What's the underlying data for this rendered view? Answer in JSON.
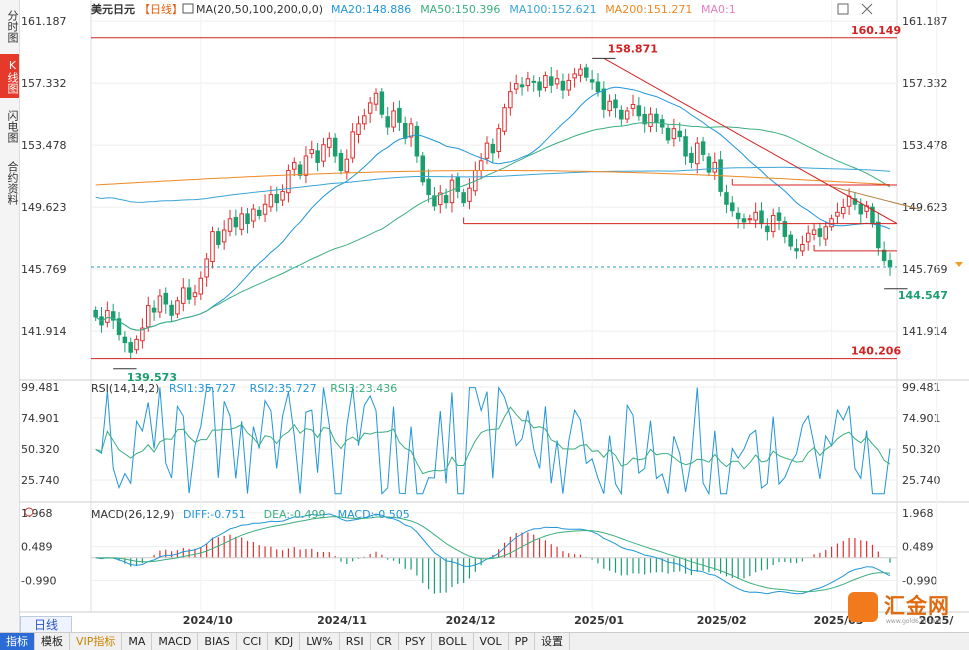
{
  "sidebar": {
    "tabs": [
      {
        "label": "分时图",
        "active": false
      },
      {
        "label": "K线图",
        "active": true
      },
      {
        "label": "闪电图",
        "active": false
      },
      {
        "label": "合约资料",
        "active": false
      }
    ]
  },
  "period_tab": "日线",
  "bottom_tabs": [
    "指标",
    "模板",
    "VIP指标",
    "MA",
    "MACD",
    "BIAS",
    "CCI",
    "KDJ",
    "LW%",
    "RSI",
    "CR",
    "PSY",
    "BOLL",
    "VOL",
    "PP",
    "设置"
  ],
  "logo": {
    "text": "汇金网",
    "url": "www.gold678.com"
  },
  "colors": {
    "up": "#e03030",
    "down": "#1a9e6e",
    "ma20": "#2196d8",
    "ma50": "#3aae7e",
    "ma100": "#3ba4d4",
    "ma200": "#ee8822",
    "rsi1": "#2196d8",
    "rsi3": "#3aae7e",
    "diff": "#2196d8",
    "dea": "#3aae7e",
    "trend": "#d42020"
  },
  "chart_data": {
    "type": "candlestick",
    "main": {
      "symbol": "美元日元",
      "period": "日线",
      "ma_header": "MA(20,50,100,200,0,0)",
      "ma_values": [
        {
          "name": "MA20",
          "value": "148.886"
        },
        {
          "name": "MA50",
          "value": "150.396"
        },
        {
          "name": "MA100",
          "value": "152.621"
        },
        {
          "name": "MA200",
          "value": "151.271"
        },
        {
          "name": "MA0",
          "value": "1"
        }
      ],
      "ylim": [
        139.0,
        162.0
      ],
      "yticks": [
        "161.187",
        "157.332",
        "153.478",
        "149.623",
        "145.769",
        "141.914"
      ],
      "horizontal_levels": [
        {
          "value": 160.149,
          "label": "160.149"
        },
        {
          "value": 140.206,
          "label": "140.206"
        }
      ],
      "support_lines": [
        151.0,
        148.6,
        146.9
      ],
      "current_price": 145.9,
      "annotations": [
        {
          "label": "158.871",
          "value": 158.871
        },
        {
          "label": "139.573",
          "value": 139.573
        },
        {
          "label": "144.547",
          "value": 144.547
        }
      ],
      "close": [
        142.8,
        142.3,
        143.2,
        142.6,
        141.7,
        141.2,
        140.6,
        141.4,
        142.1,
        143.5,
        143.1,
        144.1,
        143.6,
        142.9,
        143.8,
        144.6,
        143.9,
        144.3,
        145.2,
        146.4,
        148.1,
        147.3,
        148.2,
        148.9,
        148.4,
        149.2,
        148.6,
        149.5,
        149.1,
        149.8,
        150.4,
        149.9,
        150.6,
        151.9,
        152.4,
        151.6,
        152.8,
        153.2,
        152.4,
        153.5,
        153.9,
        152.8,
        151.9,
        152.6,
        154.3,
        154.8,
        155.3,
        156.1,
        156.7,
        155.4,
        154.6,
        155.6,
        154.9,
        153.9,
        154.8,
        152.8,
        151.2,
        150.4,
        149.7,
        150.5,
        149.9,
        151.3,
        150.6,
        149.9,
        150.8,
        151.9,
        152.5,
        153.6,
        153.0,
        154.5,
        155.8,
        156.8,
        157.3,
        157.1,
        157.6,
        157.4,
        156.9,
        157.8,
        157.2,
        157.6,
        156.9,
        157.5,
        157.9,
        158.2,
        157.7,
        157.4,
        156.8,
        155.7,
        156.2,
        155.8,
        155.1,
        155.6,
        156.0,
        155.3,
        154.8,
        155.4,
        154.9,
        154.6,
        153.8,
        154.5,
        154.0,
        152.8,
        152.4,
        153.6,
        152.9,
        151.8,
        152.4,
        150.6,
        149.8,
        149.4,
        148.9,
        148.7,
        148.9,
        149.3,
        148.6,
        148.1,
        149.1,
        148.8,
        147.8,
        147.2,
        146.9,
        147.3,
        148.0,
        148.2,
        147.8,
        148.4,
        148.9,
        149.3,
        149.6,
        150.3,
        149.8,
        149.2,
        149.7,
        148.6,
        147.1,
        146.3,
        145.9
      ]
    },
    "rsi": {
      "header": "RSI(14,14,2)",
      "values": [
        {
          "name": "RSI1",
          "value": "35.727"
        },
        {
          "name": "RSI2",
          "value": "35.727"
        },
        {
          "name": "RSI3",
          "value": "23.436"
        }
      ],
      "ylim": [
        10,
        105
      ],
      "yticks": [
        "99.481",
        "74.901",
        "50.320",
        "25.740"
      ]
    },
    "macd": {
      "header": "MACD(26,12,9)",
      "values": [
        {
          "name": "DIFF",
          "value": "-0.751"
        },
        {
          "name": "DEA",
          "value": "-0.499"
        },
        {
          "name": "MACD",
          "value": "-0.505"
        }
      ],
      "ylim": [
        -2.2,
        2.4
      ],
      "yticks": [
        "1.968",
        "0.489",
        "-0.990"
      ]
    },
    "x_ticks": [
      {
        "label": "2024/10",
        "index": 18
      },
      {
        "label": "2024/11",
        "index": 41
      },
      {
        "label": "2024/12",
        "index": 63
      },
      {
        "label": "2025/01",
        "index": 85
      },
      {
        "label": "2025/02",
        "index": 106
      },
      {
        "label": "2025/03",
        "index": 126
      },
      {
        "label": "2025/",
        "index": 144
      }
    ]
  }
}
